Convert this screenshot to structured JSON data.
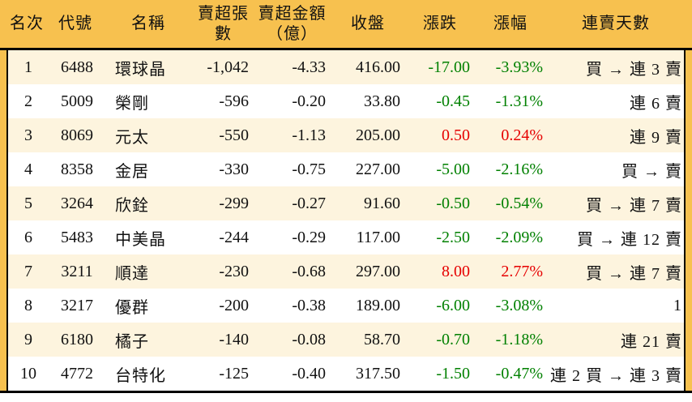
{
  "colors": {
    "header_bg": "#F7C14F",
    "row_alt_bg": "#FDF4DE",
    "up": "#E60000",
    "down": "#008000",
    "border": "#000000"
  },
  "chart_data": {
    "type": "table",
    "columns": [
      "名次",
      "代號",
      "名稱",
      "賣超張數",
      "賣超金額\n（億）",
      "收盤",
      "漲跌",
      "漲幅",
      "連賣天數"
    ],
    "rows": [
      {
        "rank": "1",
        "code": "6488",
        "name": "環球晶",
        "sell_volume": "-1,042",
        "sell_amount": "-4.33",
        "close": "416.00",
        "change": "-17.00",
        "change_pct": "-3.93%",
        "streak": "買 → 連 3 賣"
      },
      {
        "rank": "2",
        "code": "5009",
        "name": "榮剛",
        "sell_volume": "-596",
        "sell_amount": "-0.20",
        "close": "33.80",
        "change": "-0.45",
        "change_pct": "-1.31%",
        "streak": "連 6 賣"
      },
      {
        "rank": "3",
        "code": "8069",
        "name": "元太",
        "sell_volume": "-550",
        "sell_amount": "-1.13",
        "close": "205.00",
        "change": "0.50",
        "change_pct": "0.24%",
        "streak": "連 9 賣"
      },
      {
        "rank": "4",
        "code": "8358",
        "name": "金居",
        "sell_volume": "-330",
        "sell_amount": "-0.75",
        "close": "227.00",
        "change": "-5.00",
        "change_pct": "-2.16%",
        "streak": "買 → 賣"
      },
      {
        "rank": "5",
        "code": "3264",
        "name": "欣銓",
        "sell_volume": "-299",
        "sell_amount": "-0.27",
        "close": "91.60",
        "change": "-0.50",
        "change_pct": "-0.54%",
        "streak": "買 → 連 7 賣"
      },
      {
        "rank": "6",
        "code": "5483",
        "name": "中美晶",
        "sell_volume": "-244",
        "sell_amount": "-0.29",
        "close": "117.00",
        "change": "-2.50",
        "change_pct": "-2.09%",
        "streak": "買 → 連 12 賣"
      },
      {
        "rank": "7",
        "code": "3211",
        "name": "順達",
        "sell_volume": "-230",
        "sell_amount": "-0.68",
        "close": "297.00",
        "change": "8.00",
        "change_pct": "2.77%",
        "streak": "買 → 連 7 賣"
      },
      {
        "rank": "8",
        "code": "3217",
        "name": "優群",
        "sell_volume": "-200",
        "sell_amount": "-0.38",
        "close": "189.00",
        "change": "-6.00",
        "change_pct": "-3.08%",
        "streak": "1"
      },
      {
        "rank": "9",
        "code": "6180",
        "name": "橘子",
        "sell_volume": "-140",
        "sell_amount": "-0.08",
        "close": "58.70",
        "change": "-0.70",
        "change_pct": "-1.18%",
        "streak": "連 21 賣"
      },
      {
        "rank": "10",
        "code": "4772",
        "name": "台特化",
        "sell_volume": "-125",
        "sell_amount": "-0.40",
        "close": "317.50",
        "change": "-1.50",
        "change_pct": "-0.47%",
        "streak": "連 2 買 → 連 3 賣"
      }
    ]
  }
}
